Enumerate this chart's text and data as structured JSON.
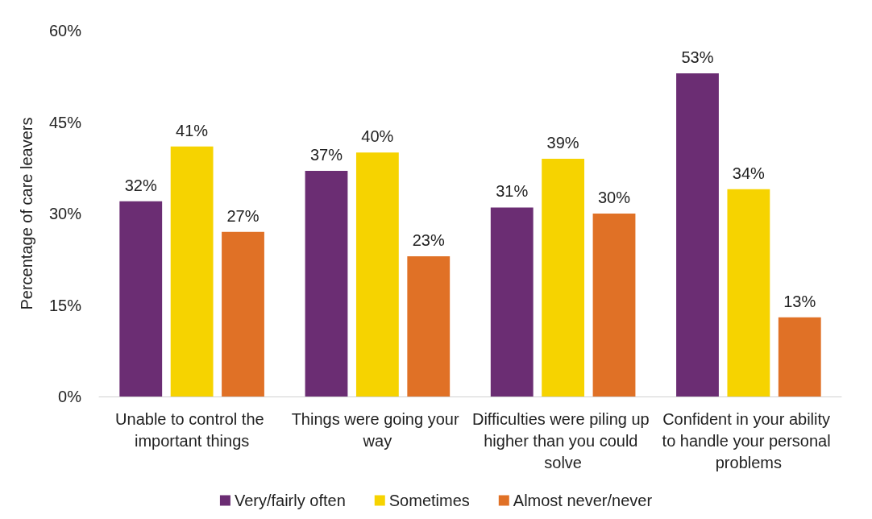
{
  "chart_data": {
    "type": "bar",
    "ylabel": "Percentage of care leavers",
    "categories": [
      "Unable to control the important things",
      "Things were going your way",
      "Difficulties were piling up higher than you could solve",
      "Confident in your ability to handle your personal problems"
    ],
    "series": [
      {
        "name": "Very/fairly often",
        "color": "#6b2d73",
        "values": [
          32,
          37,
          31,
          53
        ],
        "value_labels": [
          "32%",
          "37%",
          "31%",
          "53%"
        ]
      },
      {
        "name": "Sometimes",
        "color": "#f6d300",
        "values": [
          41,
          40,
          39,
          34
        ],
        "value_labels": [
          "41%",
          "40%",
          "39%",
          "34%"
        ]
      },
      {
        "name": "Almost never/never",
        "color": "#e07126",
        "values": [
          27,
          23,
          30,
          13
        ],
        "value_labels": [
          "27%",
          "23%",
          "30%",
          "13%"
        ]
      }
    ],
    "ylim": [
      0,
      60
    ],
    "yticks": [
      {
        "value": 0,
        "label": "0%"
      },
      {
        "value": 15,
        "label": "15%"
      },
      {
        "value": 30,
        "label": "30%"
      },
      {
        "value": 45,
        "label": "45%"
      },
      {
        "value": 60,
        "label": "60%"
      }
    ],
    "grid": false,
    "legend": "bottom",
    "marker": "square"
  }
}
